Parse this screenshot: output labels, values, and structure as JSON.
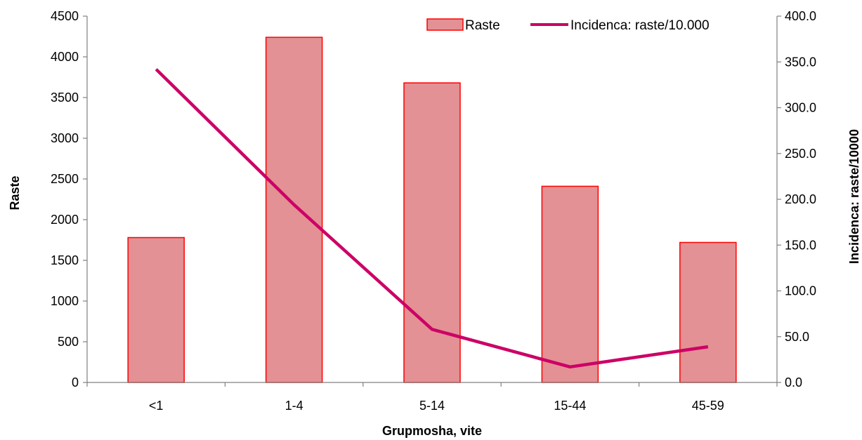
{
  "chart_data": {
    "type": "bar",
    "categories": [
      "<1",
      "1-4",
      "5-14",
      "15-44",
      "45-59"
    ],
    "series": [
      {
        "name": "Raste",
        "type": "bar",
        "axis": "left",
        "values": [
          1780,
          4240,
          3680,
          2410,
          1720
        ],
        "color": "#e39194",
        "border_color": "#ff0000"
      },
      {
        "name": "Incidenca: raste/10.000",
        "type": "line",
        "axis": "right",
        "values": [
          342,
          194,
          58,
          17,
          39
        ],
        "color": "#cc0066"
      }
    ],
    "xlabel": "Grupmosha, vite",
    "ylabel": "Raste",
    "y2label": "Incidenca: raste/10000",
    "ylim": [
      0,
      4500
    ],
    "y2lim": [
      0,
      400
    ],
    "yticks": [
      "0",
      "500",
      "1000",
      "1500",
      "2000",
      "2500",
      "3000",
      "3500",
      "4000",
      "4500"
    ],
    "y2ticks": [
      "0.0",
      "50.0",
      "100.0",
      "150.0",
      "200.0",
      "250.0",
      "300.0",
      "350.0",
      "400.0"
    ],
    "grid": false,
    "legend_position": "top-right"
  }
}
